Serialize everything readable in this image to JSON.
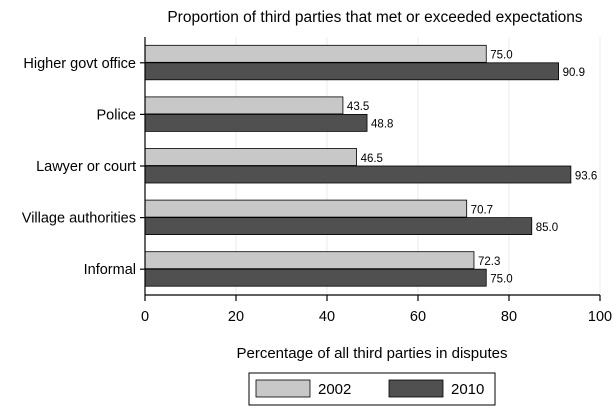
{
  "chart_data": {
    "type": "bar",
    "orientation": "horizontal",
    "title": "Proportion of third parties that met or exceeded expectations",
    "xlabel": "Percentage of all third parties in disputes",
    "ylabel": "",
    "xlim": [
      0,
      100
    ],
    "ticks": [
      0,
      20,
      40,
      60,
      80,
      100
    ],
    "grid": true,
    "legend_position": "bottom",
    "categories": [
      "Higher govt office",
      "Police",
      "Lawyer or court",
      "Village authorities",
      "Informal"
    ],
    "series": [
      {
        "name": "2002",
        "color": "#c8c8c8",
        "values": [
          75.0,
          43.5,
          46.5,
          70.7,
          72.3
        ],
        "labels": [
          "75.0",
          "43.5",
          "46.5",
          "70.7",
          "72.3"
        ]
      },
      {
        "name": "2010",
        "color": "#505050",
        "values": [
          90.9,
          48.8,
          93.6,
          85.0,
          75.0
        ],
        "labels": [
          "90.9",
          "48.8",
          "93.6",
          "85.0",
          "75.0"
        ]
      }
    ]
  }
}
